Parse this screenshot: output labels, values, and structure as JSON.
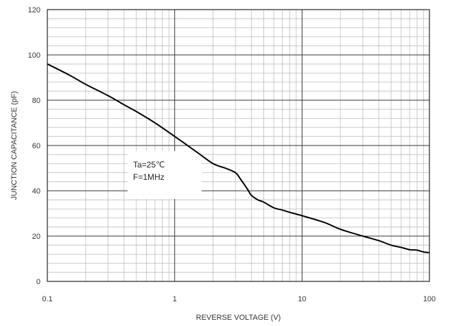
{
  "chart_data": {
    "type": "line",
    "title": "",
    "xlabel": "REVERSE VOLTAGE (V)",
    "ylabel": "JUNCTION CAPACITANCE (pF)",
    "x_scale": "log",
    "xlim": [
      0.1,
      100
    ],
    "ylim": [
      0,
      120
    ],
    "x_ticks": [
      0.1,
      1,
      10,
      100
    ],
    "x_tick_labels": [
      "0.1",
      "1",
      "10",
      "100"
    ],
    "y_ticks": [
      0,
      20,
      40,
      60,
      80,
      100,
      120
    ],
    "y_tick_labels": [
      "0",
      "20",
      "40",
      "60",
      "80",
      "100",
      "120"
    ],
    "grid": true,
    "legend": "none",
    "annotations": [
      "Ta=25℃",
      "F=1MHz"
    ],
    "series": [
      {
        "color": "#000000",
        "x": [
          0.1,
          0.15,
          0.2,
          0.3,
          0.4,
          0.5,
          0.7,
          1,
          1.5,
          2,
          2.5,
          3,
          3.3,
          3.7,
          4,
          4.5,
          5,
          6,
          7,
          8,
          10,
          15,
          20,
          30,
          40,
          50,
          60,
          70,
          80,
          90,
          100
        ],
        "y": [
          96,
          91,
          87,
          82,
          78,
          75,
          70,
          64,
          57,
          52,
          50,
          48,
          45,
          41,
          38,
          36,
          35,
          32.5,
          31.5,
          30.5,
          29,
          26,
          23,
          20,
          18,
          16,
          15,
          14,
          13.8,
          13,
          12.7
        ]
      }
    ]
  }
}
